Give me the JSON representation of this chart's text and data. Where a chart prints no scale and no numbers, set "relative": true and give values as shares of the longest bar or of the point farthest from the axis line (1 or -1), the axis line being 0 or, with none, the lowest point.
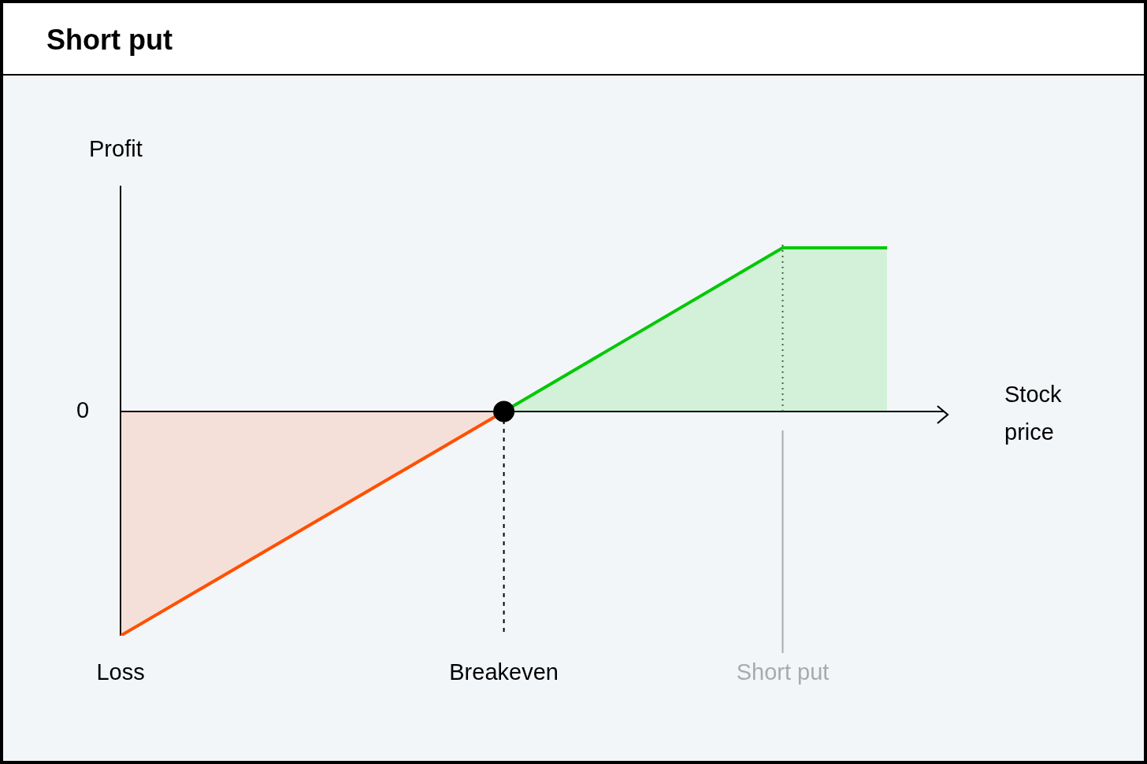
{
  "chart_data": {
    "type": "area",
    "title": "Short put",
    "xlabel": "Stock price",
    "ylabel": "Profit",
    "relative": true,
    "categories": [
      "Loss",
      null,
      null,
      null,
      null,
      null,
      null,
      null,
      null,
      null,
      null,
      "Breakeven",
      null,
      null,
      null,
      null,
      null,
      null,
      null,
      "Short put",
      null,
      null,
      null
    ],
    "series": [
      {
        "color": "#ff5000",
        "values": [
          -1,
          null,
          null,
          null,
          null,
          null,
          null,
          null,
          null,
          null,
          null,
          0,
          null,
          null,
          null,
          null,
          null,
          null,
          null,
          null,
          null,
          null,
          null
        ]
      },
      {
        "color": "#00c805",
        "values": [
          null,
          null,
          null,
          null,
          null,
          null,
          null,
          null,
          null,
          null,
          null,
          0,
          null,
          null,
          null,
          null,
          null,
          null,
          null,
          0.73,
          null,
          null,
          0.73
        ]
      },
      {
        "type": "scatter",
        "color": "#000000",
        "x": [
          "Breakeven"
        ],
        "values": [
          0
        ],
        "marker": "circle"
      }
    ],
    "ref_lines": [
      {
        "axis": "y",
        "value": 0,
        "label": "0",
        "color": "#000000"
      },
      {
        "axis": "x",
        "value": "Breakeven",
        "color": "#000000",
        "line_style": "dashed"
      },
      {
        "axis": "x",
        "value": "Short put",
        "color": "#aaaaaa",
        "line_style": "solid"
      },
      {
        "axis": "x",
        "value": "Short put",
        "color": "#555555",
        "line_style": "dotted"
      }
    ],
    "legend": false
  }
}
